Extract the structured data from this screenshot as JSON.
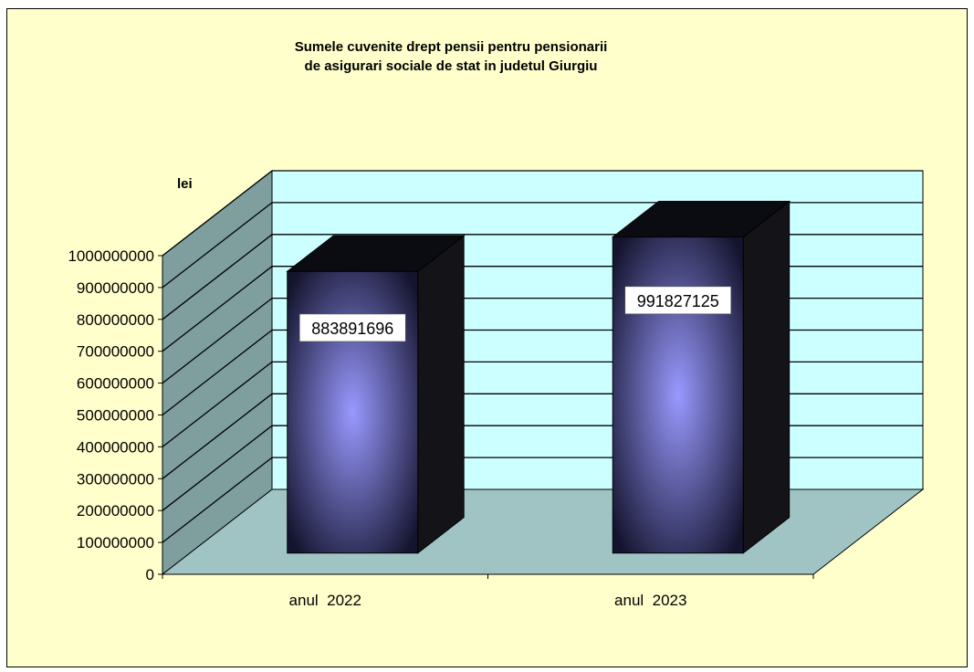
{
  "chart_data": {
    "type": "bar",
    "title_lines": [
      "Sumele cuvenite drept pensii pentru pensionarii",
      "de asigurari sociale de stat in judetul Giurgiu"
    ],
    "ylabel": "lei",
    "categories": [
      "anul  2022",
      "anul  2023"
    ],
    "values": [
      883891696,
      991827125
    ],
    "data_labels": [
      "883891696",
      "991827125"
    ],
    "ylim": [
      0,
      1000000000
    ],
    "yticks": [
      "0",
      "100000000",
      "200000000",
      "300000000",
      "400000000",
      "500000000",
      "600000000",
      "700000000",
      "800000000",
      "900000000",
      "1000000000"
    ],
    "grid": true,
    "three_d": true,
    "legend": "none",
    "colors": {
      "background": "#ffffcc",
      "back_wall": "#ccffff",
      "side_wall": "#7f9f9f",
      "floor": "#a0c4c4",
      "bar_center": "#9999ff",
      "bar_edge": "#14142e",
      "bar_top": "#0b0b12",
      "bar_side": "#141418"
    }
  }
}
